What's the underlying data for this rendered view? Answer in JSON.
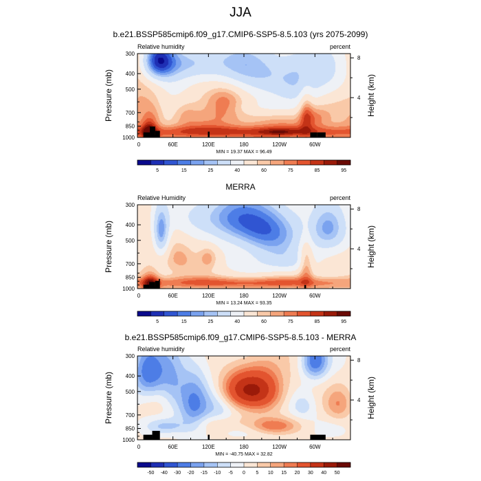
{
  "figure": {
    "title": "JJA"
  },
  "colors": {
    "rh_scale": [
      "#0a0a8c",
      "#1e2fb4",
      "#3055d2",
      "#4d7de6",
      "#7aa2ef",
      "#a5c3f5",
      "#cddff8",
      "#eef1f6",
      "#fbe6d5",
      "#f9c9a8",
      "#f5a57c",
      "#ef7c52",
      "#e3542f",
      "#c43317",
      "#9a1a09",
      "#6a0a05"
    ],
    "diff_scale": [
      "#0a0a8c",
      "#1e2fb4",
      "#3055d2",
      "#4d7de6",
      "#7aa2ef",
      "#a5c3f5",
      "#cddff8",
      "#eef1f6",
      "#fbe6d5",
      "#f9c9a8",
      "#f5a57c",
      "#ef7c52",
      "#e3542f",
      "#c43317",
      "#9a1a09",
      "#6a0a05"
    ]
  },
  "chart_data": [
    {
      "type": "heatmap",
      "title": "b.e21.BSSP585cmip6.f09_g17.CMIP6-SSP5-8.5.103 (yrs 2075-2099)",
      "left_label": "Relative humidity",
      "right_label": "percent",
      "ylabel": "Pressure (mb)",
      "y2label": "Height (km)",
      "x_ticks": [
        "0",
        "60E",
        "120E",
        "180",
        "120W",
        "60W"
      ],
      "x_tick_values": [
        0,
        60,
        120,
        180,
        240,
        300
      ],
      "xlim": [
        0,
        360
      ],
      "y_ticks": [
        "300",
        "400",
        "500",
        "700",
        "850",
        "1000"
      ],
      "y_tick_values": [
        300,
        400,
        500,
        700,
        850,
        1000
      ],
      "ylim": [
        1000,
        300
      ],
      "y2_ticks": [
        "8",
        "4"
      ],
      "y2_tick_values": [
        8,
        4
      ],
      "minmax": "MIN = 19.37  MAX = 96.49",
      "colorbar_labels": [
        "5",
        "15",
        "25",
        "40",
        "60",
        "75",
        "85",
        "95"
      ],
      "colorbar_label_slots": [
        1,
        3,
        5,
        7,
        9,
        11,
        13,
        15
      ],
      "levels": [
        5,
        10,
        15,
        20,
        25,
        30,
        40,
        50,
        60,
        65,
        70,
        75,
        80,
        85,
        90,
        95
      ],
      "base": 66,
      "blobs": [
        {
          "lon": 20,
          "p": 930,
          "sx": 9,
          "sp": 100,
          "a": 23
        },
        {
          "lon": 24,
          "p": 770,
          "sx": 12,
          "sp": 110,
          "a": 8
        },
        {
          "lon": 34,
          "p": 330,
          "sx": 20,
          "sp": 70,
          "a": -45
        },
        {
          "lon": 60,
          "p": 500,
          "sx": 26,
          "sp": 200,
          "a": -18
        },
        {
          "lon": 150,
          "p": 330,
          "sx": 55,
          "sp": 90,
          "a": -25
        },
        {
          "lon": 220,
          "p": 430,
          "sx": 55,
          "sp": 130,
          "a": -28
        },
        {
          "lon": 275,
          "p": 420,
          "sx": 25,
          "sp": 200,
          "a": -14
        },
        {
          "lon": 325,
          "p": 380,
          "sx": 30,
          "sp": 150,
          "a": -22
        },
        {
          "lon": 148,
          "p": 560,
          "sx": 22,
          "sp": 90,
          "a": 8
        },
        {
          "lon": 80,
          "p": 700,
          "sx": 15,
          "sp": 100,
          "a": 8
        },
        {
          "lon": 145,
          "p": 650,
          "sx": 20,
          "sp": 120,
          "a": 6
        },
        {
          "lon": 285,
          "p": 690,
          "sx": 8,
          "sp": 170,
          "a": 16
        },
        {
          "lon": 300,
          "p": 750,
          "sx": 15,
          "sp": 80,
          "a": 10
        },
        {
          "lon": 210,
          "p": 655,
          "sx": 40,
          "sp": 60,
          "a": -10
        },
        {
          "lon": 90,
          "p": 340,
          "sx": 30,
          "sp": 60,
          "a": -16
        },
        {
          "lon": 180,
          "p": 920,
          "sx": 180,
          "sp": 55,
          "a": 18
        },
        {
          "lon": 238,
          "p": 930,
          "sx": 22,
          "sp": 30,
          "a": 8
        }
      ],
      "topo": [
        [
          10,
          21,
          930
        ],
        [
          21,
          30,
          855
        ],
        [
          30,
          38,
          910
        ],
        [
          119,
          122,
          920
        ],
        [
          292,
          304,
          930
        ],
        [
          304,
          318,
          930
        ]
      ]
    },
    {
      "type": "heatmap",
      "title": "MERRA",
      "left_label": "Relative Humidity",
      "right_label": "percent",
      "ylabel": "Pressure (mb)",
      "y2label": "Height (km)",
      "x_ticks": [
        "0",
        "60E",
        "120E",
        "180",
        "120W",
        "60W"
      ],
      "x_tick_values": [
        0,
        60,
        120,
        180,
        240,
        300
      ],
      "xlim": [
        0,
        360
      ],
      "y_ticks": [
        "300",
        "400",
        "500",
        "700",
        "850",
        "1000"
      ],
      "y_tick_values": [
        300,
        400,
        500,
        700,
        850,
        1000
      ],
      "ylim": [
        1000,
        300
      ],
      "y2_ticks": [
        "8",
        "4"
      ],
      "y2_tick_values": [
        8,
        4
      ],
      "minmax": "MIN = 13.24  MAX = 93.35",
      "colorbar_labels": [
        "5",
        "15",
        "25",
        "40",
        "60",
        "75",
        "85",
        "95"
      ],
      "colorbar_label_slots": [
        1,
        3,
        5,
        7,
        9,
        11,
        13,
        15
      ],
      "levels": [
        5,
        10,
        15,
        20,
        25,
        30,
        40,
        50,
        60,
        65,
        70,
        75,
        80,
        85,
        90,
        95
      ],
      "base": 58,
      "blobs": [
        {
          "lon": 22,
          "p": 930,
          "sx": 10,
          "sp": 100,
          "a": 25
        },
        {
          "lon": 40,
          "p": 450,
          "sx": 10,
          "sp": 120,
          "a": -35
        },
        {
          "lon": 220,
          "p": 430,
          "sx": 45,
          "sp": 130,
          "a": -40
        },
        {
          "lon": 150,
          "p": 350,
          "sx": 40,
          "sp": 100,
          "a": -25
        },
        {
          "lon": 325,
          "p": 430,
          "sx": 25,
          "sp": 120,
          "a": -32
        },
        {
          "lon": 90,
          "p": 350,
          "sx": 30,
          "sp": 80,
          "a": -12
        },
        {
          "lon": 120,
          "p": 640,
          "sx": 12,
          "sp": 80,
          "a": 15
        },
        {
          "lon": 75,
          "p": 650,
          "sx": 20,
          "sp": 100,
          "a": 10
        },
        {
          "lon": 285,
          "p": 680,
          "sx": 8,
          "sp": 170,
          "a": 20
        },
        {
          "lon": 180,
          "p": 920,
          "sx": 180,
          "sp": 55,
          "a": 20
        },
        {
          "lon": 200,
          "p": 700,
          "sx": 60,
          "sp": 100,
          "a": -10
        },
        {
          "lon": 260,
          "p": 680,
          "sx": 30,
          "sp": 80,
          "a": -12
        }
      ],
      "topo": [
        [
          10,
          20,
          945
        ],
        [
          20,
          30,
          910
        ],
        [
          30,
          36,
          895
        ],
        [
          36,
          38,
          870
        ],
        [
          282,
          285,
          950
        ]
      ]
    },
    {
      "type": "heatmap",
      "title": "b.e21.BSSP585cmip6.f09_g17.CMIP6-SSP5-8.5.103 - MERRA",
      "left_label": "Relative humidity",
      "right_label": "percent",
      "ylabel": "Pressure (mb)",
      "y2label": "Height (km)",
      "x_ticks": [
        "0",
        "60E",
        "120E",
        "180",
        "120W",
        "60W"
      ],
      "x_tick_values": [
        0,
        60,
        120,
        180,
        240,
        300
      ],
      "xlim": [
        0,
        360
      ],
      "y_ticks": [
        "300",
        "400",
        "500",
        "700",
        "850",
        "1000"
      ],
      "y_tick_values": [
        300,
        400,
        500,
        700,
        850,
        1000
      ],
      "ylim": [
        1000,
        300
      ],
      "y2_ticks": [
        "8",
        "4"
      ],
      "y2_tick_values": [
        8,
        4
      ],
      "minmax": "MIN = -40.75  MAX = 32.82",
      "colorbar_labels": [
        "-50",
        "-40",
        "-30",
        "-20",
        "-15",
        "-10",
        "-5",
        "0",
        "5",
        "10",
        "15",
        "20",
        "30",
        "40",
        "50"
      ],
      "colorbar_label_slots": [
        1,
        2,
        3,
        4,
        5,
        6,
        7,
        8,
        9,
        10,
        11,
        12,
        13,
        14,
        15
      ],
      "levels": [
        -50,
        -40,
        -30,
        -20,
        -15,
        -10,
        -5,
        0,
        5,
        10,
        15,
        20,
        30,
        40,
        50
      ],
      "base": 1,
      "blobs": [
        {
          "lon": 180,
          "p": 480,
          "sx": 30,
          "sp": 90,
          "a": 32
        },
        {
          "lon": 215,
          "p": 500,
          "sx": 25,
          "sp": 120,
          "a": 18
        },
        {
          "lon": 20,
          "p": 380,
          "sx": 20,
          "sp": 100,
          "a": -25
        },
        {
          "lon": 60,
          "p": 420,
          "sx": 15,
          "sp": 150,
          "a": -12
        },
        {
          "lon": 95,
          "p": 600,
          "sx": 18,
          "sp": 200,
          "a": -20
        },
        {
          "lon": 140,
          "p": 600,
          "sx": 20,
          "sp": 140,
          "a": -10
        },
        {
          "lon": 300,
          "p": 320,
          "sx": 15,
          "sp": 60,
          "a": -25
        },
        {
          "lon": 230,
          "p": 820,
          "sx": 25,
          "sp": 60,
          "a": 15
        },
        {
          "lon": 50,
          "p": 820,
          "sx": 25,
          "sp": 60,
          "a": -10
        },
        {
          "lon": 340,
          "p": 600,
          "sx": 15,
          "sp": 100,
          "a": 12
        },
        {
          "lon": 160,
          "p": 780,
          "sx": 50,
          "sp": 60,
          "a": 6
        },
        {
          "lon": 280,
          "p": 620,
          "sx": 15,
          "sp": 80,
          "a": -8
        }
      ],
      "topo": [
        [
          10,
          25,
          930
        ],
        [
          25,
          38,
          880
        ],
        [
          119,
          122,
          930
        ],
        [
          292,
          318,
          930
        ]
      ]
    }
  ]
}
